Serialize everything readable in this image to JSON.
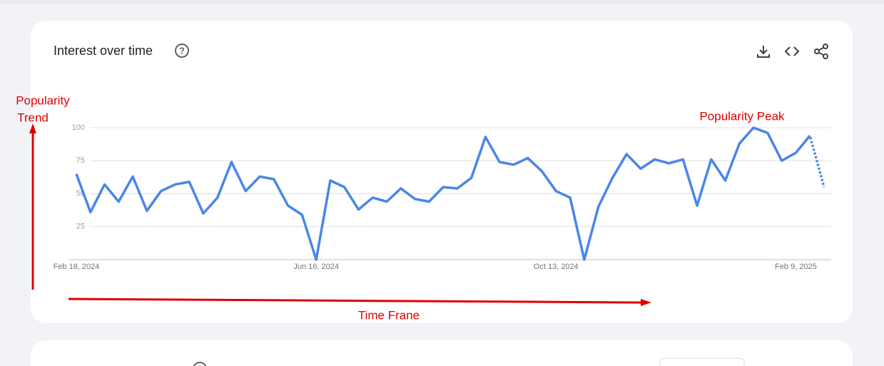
{
  "header": {
    "title": "Interest over time"
  },
  "chart_data": {
    "type": "line",
    "categories": [
      "Feb 18, 2024",
      null,
      null,
      null,
      null,
      null,
      null,
      null,
      null,
      null,
      null,
      null,
      null,
      null,
      null,
      null,
      null,
      "Jun 16, 2024",
      null,
      null,
      null,
      null,
      null,
      null,
      null,
      null,
      null,
      null,
      null,
      null,
      null,
      null,
      null,
      null,
      "Oct 13, 2024",
      null,
      null,
      null,
      null,
      null,
      null,
      null,
      null,
      null,
      null,
      null,
      null,
      null,
      null,
      null,
      null,
      "Feb 9, 2025",
      null,
      null
    ],
    "series": [
      {
        "color": "#4a86e8",
        "values": [
          65,
          36,
          57,
          44,
          63,
          37,
          52,
          57,
          59,
          35,
          47,
          74,
          52,
          63,
          61,
          41,
          34,
          0,
          60,
          55,
          38,
          47,
          44,
          54,
          46,
          44,
          55,
          54,
          62,
          93,
          74,
          72,
          77,
          67,
          52,
          47,
          0,
          40,
          62,
          80,
          69,
          76,
          73,
          76,
          41,
          76,
          60,
          88,
          100,
          96,
          75,
          81,
          94,
          55
        ]
      }
    ],
    "last_point_partial": true,
    "ylim": [
      0,
      100
    ],
    "yticks": [
      25,
      50,
      75,
      100
    ],
    "grid": true
  },
  "annotations": {
    "trend": [
      "Popularity",
      "Trend"
    ],
    "peak": "Popularity Peak",
    "time": "Time Frane"
  }
}
